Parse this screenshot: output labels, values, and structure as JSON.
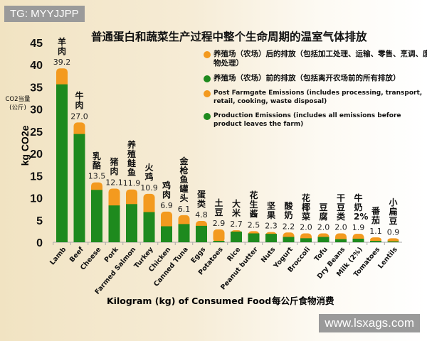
{
  "watermark_top": "TG: MYYJJPP",
  "watermark_bottom": "www.lsxags.com",
  "colors": {
    "post": "#f39a1f",
    "production": "#1e8a1e"
  },
  "chart_data": {
    "type": "bar",
    "stacked": true,
    "title": "普通蛋白和蔬菜生产过程中整个生命周期的温室气体排放",
    "xlabel": "Kilogram (kg) of Consumed Food",
    "xlabel_cn": "每公斤食物消费",
    "ylabel": "kg CO2e",
    "ylabel_cn_1": "CO2当量",
    "ylabel_cn_2": "(公斤)",
    "ylim": [
      0,
      45
    ],
    "yticks": [
      0,
      5,
      10,
      15,
      20,
      25,
      30,
      35,
      40,
      45
    ],
    "grid": false,
    "legend_position": "top-right",
    "legend": [
      {
        "series": "post",
        "label": "养殖场（农场）后的排放（包括加工处理、运输、零售、烹调、废物处理）"
      },
      {
        "series": "production",
        "label": "养殖场（农场）前的排放（包括离开农场前的所有排放）"
      },
      {
        "series": "post",
        "label": "Post Farmgate Emissions (includes processing, transport, retail, cooking, waste disposal)",
        "en": true
      },
      {
        "series": "production",
        "label": "Production Emissions (includes all emissions before product leaves the farm)",
        "en": true
      }
    ],
    "categories": [
      "Lamb",
      "Beef",
      "Cheese",
      "Pork",
      "Farmed Salmon",
      "Turkey",
      "Chicken",
      "Canned Tuna",
      "Eggs",
      "Potatoes",
      "Rice",
      "Peanut butter",
      "Nuts",
      "Yogurt",
      "Broccoli",
      "Tofu",
      "Dry Beans",
      "Milk (2%)",
      "Tomatoes",
      "Lentils"
    ],
    "categories_cn": [
      "羊肉",
      "牛肉",
      "乳酪",
      "猪肉",
      "养殖鲑鱼",
      "火鸡",
      "鸡肉",
      "金枪鱼罐头",
      "蛋类",
      "土豆",
      "大米",
      "花生酱",
      "坚果",
      "酸奶",
      "花椰菜",
      "豆腐",
      "干豆类",
      "牛奶2%",
      "番茄",
      "小扁豆"
    ],
    "totals": [
      39.2,
      27.0,
      13.5,
      12.1,
      11.9,
      10.9,
      6.9,
      6.1,
      4.8,
      2.9,
      2.7,
      2.5,
      2.3,
      2.2,
      2.0,
      2.0,
      2.0,
      1.9,
      1.1,
      0.9
    ],
    "series": [
      {
        "key": "production",
        "values": [
          35.6,
          24.4,
          11.8,
          8.3,
          8.6,
          6.8,
          3.6,
          4.1,
          3.7,
          0.3,
          2.4,
          2.0,
          1.9,
          1.2,
          0.9,
          1.2,
          0.7,
          0.8,
          0.3,
          0.2
        ]
      },
      {
        "key": "post",
        "values": [
          3.6,
          2.6,
          1.7,
          3.8,
          3.3,
          4.1,
          3.3,
          2.0,
          1.1,
          2.6,
          0.3,
          0.5,
          0.4,
          1.0,
          1.1,
          0.8,
          1.3,
          1.1,
          0.8,
          0.7
        ]
      }
    ]
  }
}
